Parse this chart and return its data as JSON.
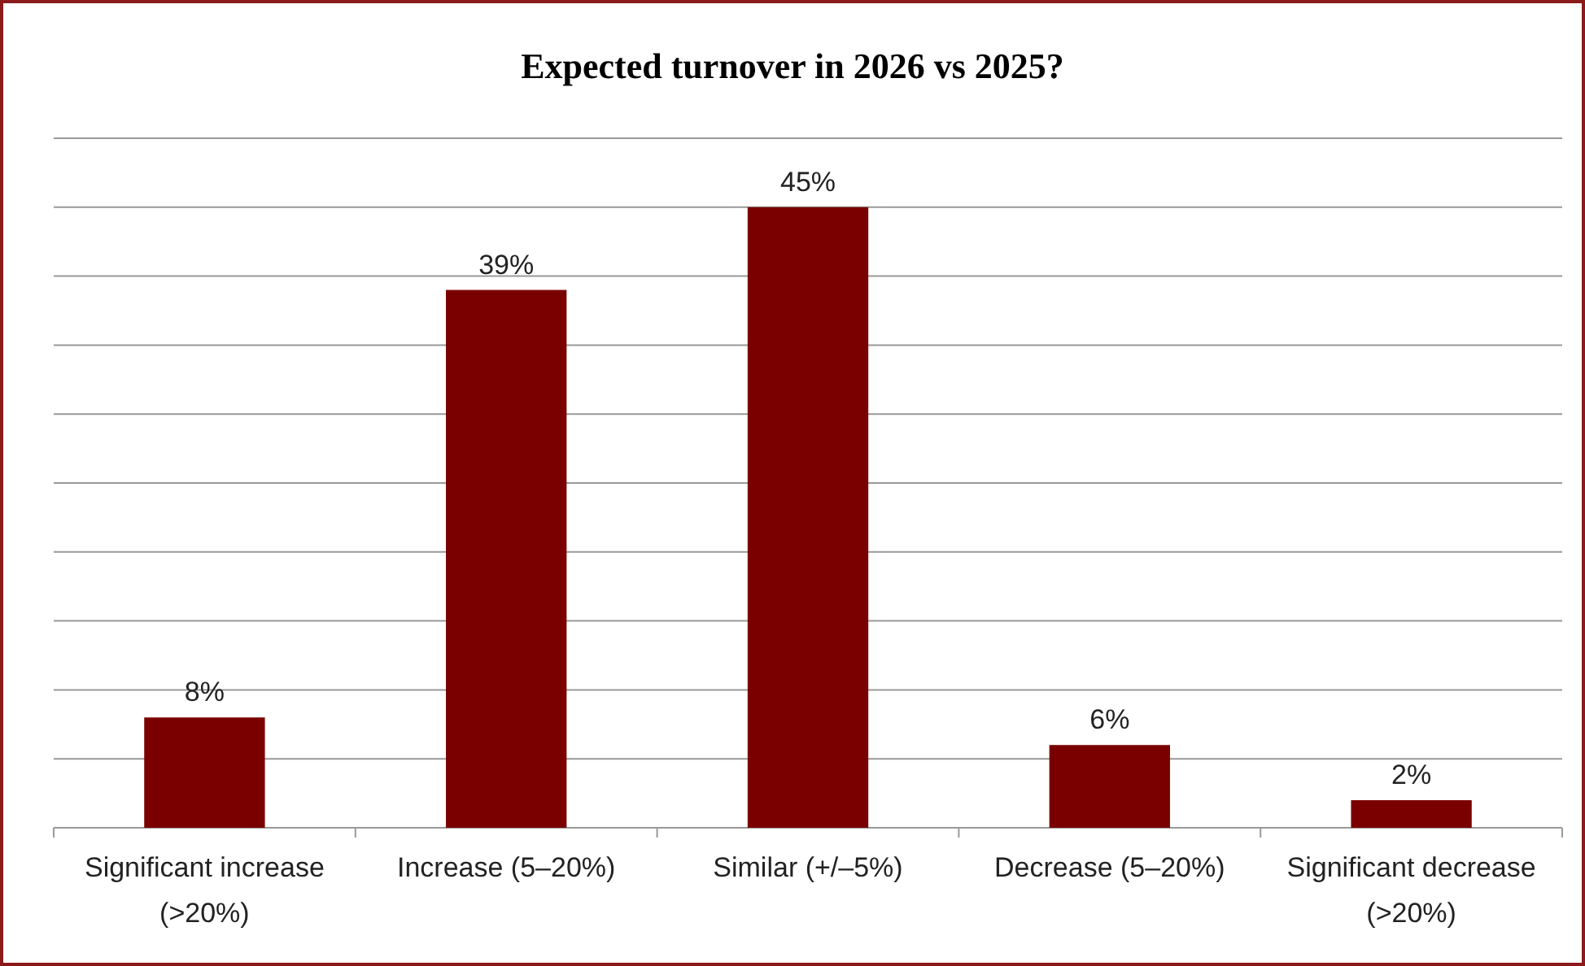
{
  "chart_data": {
    "type": "bar",
    "title": "Expected turnover in 2026 vs 2025?",
    "categories": [
      "Significant increase (>20%)",
      "Increase (5–20%)",
      "Similar (+/–5%)",
      "Decrease (5–20%)",
      "Significant decrease (>20%)"
    ],
    "values": [
      8,
      39,
      45,
      6,
      2
    ],
    "value_labels": [
      "8%",
      "39%",
      "45%",
      "6%",
      "2%"
    ],
    "color": "#7a0000",
    "ylim": [
      0,
      50
    ],
    "yticks": [
      {
        "value": 0,
        "label": null
      },
      {
        "value": 5,
        "label": null
      },
      {
        "value": 10,
        "label": null
      },
      {
        "value": 15,
        "label": null
      },
      {
        "value": 20,
        "label": null
      },
      {
        "value": 25,
        "label": null
      },
      {
        "value": 30,
        "label": null
      },
      {
        "value": 35,
        "label": null
      },
      {
        "value": 40,
        "label": null
      },
      {
        "value": 45,
        "label": null
      },
      {
        "value": 50,
        "label": null
      }
    ],
    "tick_labels": "x",
    "grid": "y"
  }
}
